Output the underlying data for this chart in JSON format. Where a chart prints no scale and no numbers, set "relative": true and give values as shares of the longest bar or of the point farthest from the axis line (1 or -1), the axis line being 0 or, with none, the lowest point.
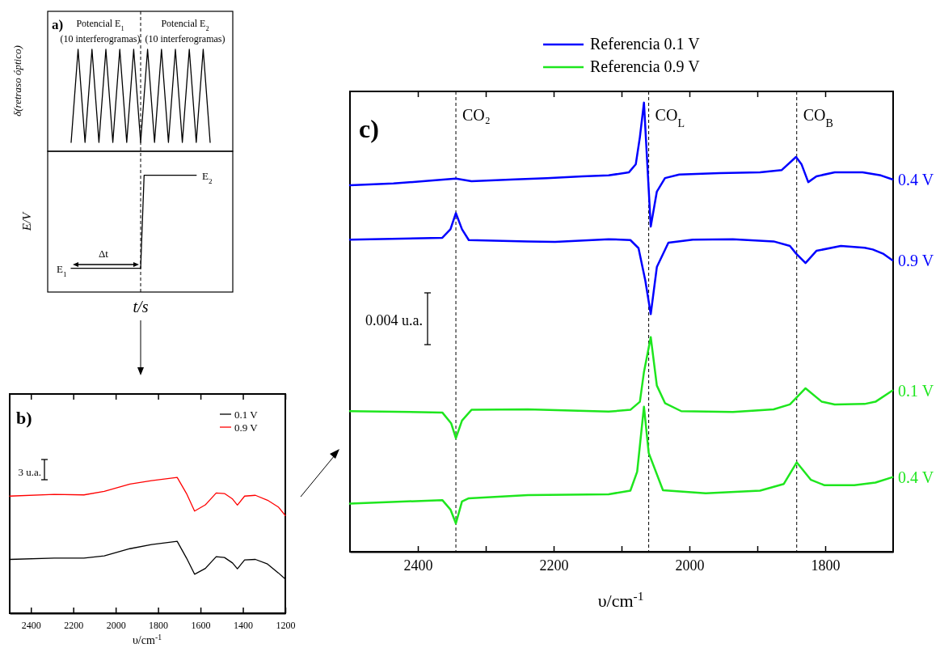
{
  "chart_data": [
    {
      "type": "line",
      "ylabel": "δ(retraso óptico)",
      "annotations": [
        "a)",
        "Potencial E$_{1}$",
        "(10 interferogramas)",
        "Potencial E$_{2}$",
        "(10 interferogramas)"
      ],
      "categories": [
        null,
        null,
        null,
        null,
        null,
        null,
        null,
        null,
        null,
        null,
        null,
        null,
        null,
        null,
        null,
        null,
        null,
        null,
        null,
        null,
        null
      ],
      "values": [
        0.087,
        1,
        0.087,
        1,
        0.087,
        1,
        0.087,
        1,
        0.087,
        1,
        0.087,
        1,
        0.087,
        1,
        0.087,
        1,
        0.087,
        1,
        0.087,
        1,
        0.087
      ],
      "color": "#000000",
      "relative": true,
      "tick_labels": false
    },
    {
      "type": "line",
      "ylabel": "E/V",
      "xlabel": "t/s",
      "annotations": [
        "E$_{2}$",
        "E$_{1}$",
        "Δt"
      ],
      "categories": [
        null,
        null,
        null,
        null,
        null,
        null,
        null,
        null,
        null,
        null,
        null,
        null,
        null,
        null,
        null,
        null,
        null,
        null,
        null,
        null,
        null,
        null,
        null,
        null,
        null,
        null,
        null,
        null,
        null,
        null,
        null,
        null,
        null,
        null,
        null,
        null,
        null
      ],
      "values": [
        0.203,
        0.203,
        0.203,
        0.203,
        0.203,
        0.203,
        0.203,
        0.203,
        0.203,
        0.203,
        0.203,
        0.203,
        0.203,
        0.203,
        0.203,
        0.203,
        0.203,
        0.203,
        0.203,
        0.203,
        0.203,
        1,
        1,
        1,
        1,
        1,
        1,
        1,
        1,
        1,
        1,
        1,
        1,
        1,
        1,
        1,
        1
      ],
      "color": "#000000",
      "relative": true,
      "tick_labels": false
    },
    {
      "type": "line",
      "xlabel": "υ/cm$^{-1}$",
      "xlim": [
        2500,
        1200
      ],
      "xticks": [
        2400,
        2200,
        2000,
        1800,
        1600,
        1400,
        1200
      ],
      "relative": true,
      "tick_labels": "x",
      "legend": "top right",
      "annotations": [
        "b)",
        "3 u.a."
      ],
      "series": [
        {
          "name": "0.1 V",
          "color": "#000000",
          "x": [
            2500,
            2290,
            2150,
            2054,
            1933,
            1831,
            1710,
            1666,
            1628,
            1577,
            1526,
            1487,
            1449,
            1426,
            1392,
            1341,
            1284,
            1233,
            1200
          ],
          "values": [
            0.396,
            0.406,
            0.406,
            0.422,
            0.475,
            0.505,
            0.529,
            0.406,
            0.287,
            0.33,
            0.416,
            0.41,
            0.37,
            0.327,
            0.392,
            0.396,
            0.362,
            0.297,
            0.251
          ]
        },
        {
          "name": "0.9 V",
          "color": "#ff0000",
          "x": [
            2500,
            2290,
            2150,
            2054,
            1933,
            1831,
            1710,
            1666,
            1628,
            1577,
            1526,
            1487,
            1449,
            1426,
            1392,
            1341,
            1284,
            1233,
            1200
          ],
          "values": [
            0.862,
            0.875,
            0.871,
            0.897,
            0.951,
            0.976,
            1.0,
            0.881,
            0.752,
            0.798,
            0.885,
            0.881,
            0.841,
            0.796,
            0.862,
            0.868,
            0.832,
            0.782,
            0.719
          ]
        }
      ]
    },
    {
      "type": "line",
      "xlabel": "υ/cm$^{-1}$",
      "xlim": [
        2500,
        1700
      ],
      "xticks": [
        2400,
        {
          "value": 2300,
          "label": null
        },
        2200,
        {
          "value": 2100,
          "label": null
        },
        2000,
        {
          "value": 1900,
          "label": null
        },
        1800
      ],
      "relative": true,
      "tick_labels": "x",
      "legend": "top",
      "annotations": [
        "c)",
        "0.004 u.a.",
        "Referencia 0.1 V",
        "Referencia 0.9 V"
      ],
      "ref_lines": [
        {
          "axis": "x",
          "value": 2344,
          "label": "CO₂",
          "line_style": "dashed"
        },
        {
          "axis": "x",
          "value": 2060,
          "label": "CO$_{L}$",
          "line_style": "dashed"
        },
        {
          "axis": "x",
          "value": 1842,
          "label": "CO$_{B}$",
          "line_style": "dashed"
        }
      ],
      "series": [
        {
          "name": "0.4 V",
          "color": "#0000ff",
          "x": [
            2500,
            2436,
            2385,
            2344,
            2321,
            2257,
            2210,
            2158,
            2119,
            2089,
            2079,
            2073,
            2067,
            2057,
            2048,
            2036,
            2015,
            1956,
            1896,
            1864,
            1843,
            1835,
            1825,
            1813,
            1786,
            1745,
            1718,
            1701
          ],
          "values": [
            0.816,
            0.82,
            0.826,
            0.831,
            0.825,
            0.829,
            0.832,
            0.836,
            0.838,
            0.845,
            0.863,
            0.923,
            1.0,
            0.724,
            0.802,
            0.832,
            0.84,
            0.843,
            0.845,
            0.85,
            0.879,
            0.863,
            0.823,
            0.836,
            0.845,
            0.845,
            0.838,
            0.829
          ]
        },
        {
          "name": "0.9 V",
          "color": "#0000ff",
          "x": [
            2500,
            2364,
            2352,
            2344,
            2335,
            2325,
            2238,
            2198,
            2119,
            2087,
            2075,
            2065,
            2057,
            2048,
            2031,
            1995,
            1936,
            1876,
            1852,
            1843,
            1829,
            1813,
            1777,
            1742,
            1730,
            1714,
            1701
          ],
          "values": [
            0.695,
            0.699,
            0.718,
            0.754,
            0.718,
            0.694,
            0.691,
            0.69,
            0.696,
            0.694,
            0.676,
            0.604,
            0.529,
            0.634,
            0.688,
            0.695,
            0.696,
            0.691,
            0.681,
            0.664,
            0.643,
            0.67,
            0.681,
            0.677,
            0.673,
            0.663,
            0.649
          ]
        },
        {
          "name": "0.1 V",
          "color": "#1ee61e",
          "x": [
            2500,
            2364,
            2351,
            2344,
            2335,
            2321,
            2238,
            2119,
            2087,
            2073,
            2067,
            2057,
            2048,
            2036,
            2012,
            1936,
            1876,
            1852,
            1829,
            1805,
            1786,
            1742,
            1726,
            1701
          ],
          "values": [
            0.313,
            0.31,
            0.286,
            0.253,
            0.292,
            0.316,
            0.317,
            0.312,
            0.316,
            0.334,
            0.4,
            0.478,
            0.37,
            0.331,
            0.313,
            0.311,
            0.317,
            0.328,
            0.364,
            0.334,
            0.328,
            0.329,
            0.334,
            0.359
          ]
        },
        {
          "name": "0.4 V",
          "color": "#1ee61e",
          "x": [
            2500,
            2364,
            2352,
            2344,
            2335,
            2325,
            2238,
            2119,
            2087,
            2077,
            2067,
            2060,
            2039,
            1976,
            1896,
            1861,
            1842,
            1821,
            1801,
            1757,
            1726,
            1701
          ],
          "values": [
            0.107,
            0.115,
            0.094,
            0.063,
            0.112,
            0.119,
            0.126,
            0.128,
            0.136,
            0.178,
            0.323,
            0.22,
            0.137,
            0.13,
            0.136,
            0.151,
            0.199,
            0.16,
            0.148,
            0.148,
            0.154,
            0.166
          ]
        }
      ]
    }
  ]
}
